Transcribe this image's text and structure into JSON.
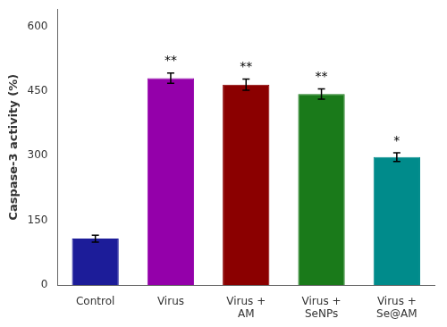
{
  "chart_data": {
    "type": "bar",
    "categories": [
      "Control",
      "Virus",
      "Virus +\nAM",
      "Virus +\nSeNPs",
      "Virus +\nSe@AM"
    ],
    "values": [
      108,
      480,
      465,
      443,
      297
    ],
    "errors": [
      8,
      12,
      13,
      12,
      10
    ],
    "significance": [
      null,
      "**",
      "**",
      "**",
      "*"
    ],
    "colors": [
      "#1c1c99",
      "#9400aa",
      "#8b0000",
      "#1a7a1a",
      "#008b8b"
    ],
    "ylabel": "Caspase-3 activity (%)",
    "ylim": [
      0,
      640
    ],
    "yticks": [
      0,
      150,
      300,
      450,
      600
    ],
    "grid": false
  }
}
